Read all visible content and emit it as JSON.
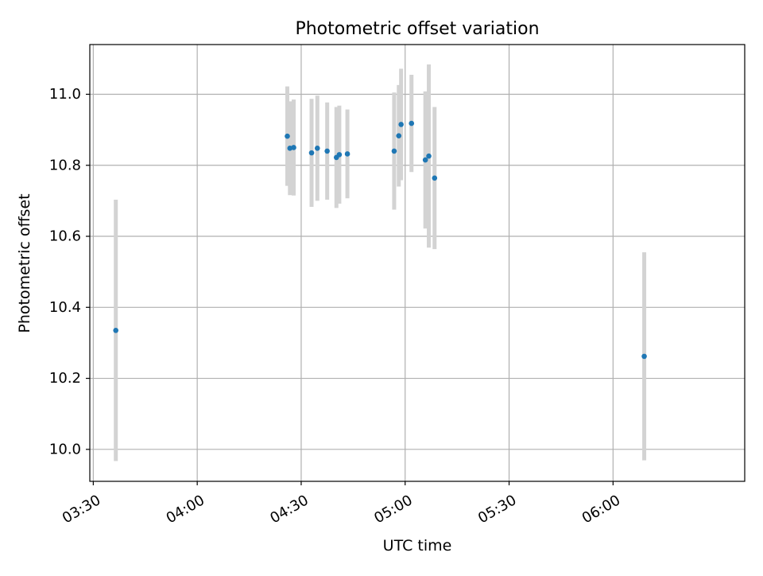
{
  "chart_data": {
    "type": "scatter",
    "title": "Photometric offset variation",
    "xlabel": "UTC time",
    "ylabel": "Photometric offset",
    "x_unit": "UTC time of day (HH:MM)",
    "xlim": [
      "03:29",
      "06:38"
    ],
    "ylim": [
      9.91,
      11.14
    ],
    "x_ticks": [
      "03:30",
      "04:00",
      "04:30",
      "05:00",
      "05:30",
      "06:00"
    ],
    "y_ticks": [
      10.0,
      10.2,
      10.4,
      10.6,
      10.8,
      11.0
    ],
    "y_tick_labels": [
      "10.0",
      "10.2",
      "10.4",
      "10.6",
      "10.8",
      "11.0"
    ],
    "grid": true,
    "legend": "none",
    "colors": {
      "point": "#1f77b4",
      "errorbar": "#d3d3d3",
      "grid": "#b0b0b0"
    },
    "series": [
      {
        "points": [
          {
            "x": "03:36:30",
            "y": 10.335,
            "err": 0.368
          },
          {
            "x": "04:26:00",
            "y": 10.882,
            "err": 0.14
          },
          {
            "x": "04:26:45",
            "y": 10.848,
            "err": 0.132
          },
          {
            "x": "04:27:50",
            "y": 10.85,
            "err": 0.135
          },
          {
            "x": "04:33:00",
            "y": 10.835,
            "err": 0.152
          },
          {
            "x": "04:34:40",
            "y": 10.848,
            "err": 0.148
          },
          {
            "x": "04:37:30",
            "y": 10.84,
            "err": 0.137
          },
          {
            "x": "04:40:10",
            "y": 10.822,
            "err": 0.142
          },
          {
            "x": "04:41:00",
            "y": 10.83,
            "err": 0.138
          },
          {
            "x": "04:43:20",
            "y": 10.832,
            "err": 0.125
          },
          {
            "x": "04:56:50",
            "y": 10.84,
            "err": 0.165
          },
          {
            "x": "04:58:10",
            "y": 10.883,
            "err": 0.143
          },
          {
            "x": "04:58:50",
            "y": 10.915,
            "err": 0.157
          },
          {
            "x": "05:01:50",
            "y": 10.918,
            "err": 0.137
          },
          {
            "x": "05:05:50",
            "y": 10.815,
            "err": 0.193
          },
          {
            "x": "05:06:50",
            "y": 10.826,
            "err": 0.258
          },
          {
            "x": "05:08:30",
            "y": 10.764,
            "err": 0.2
          },
          {
            "x": "06:09:00",
            "y": 10.262,
            "err": 0.293
          }
        ]
      }
    ]
  }
}
